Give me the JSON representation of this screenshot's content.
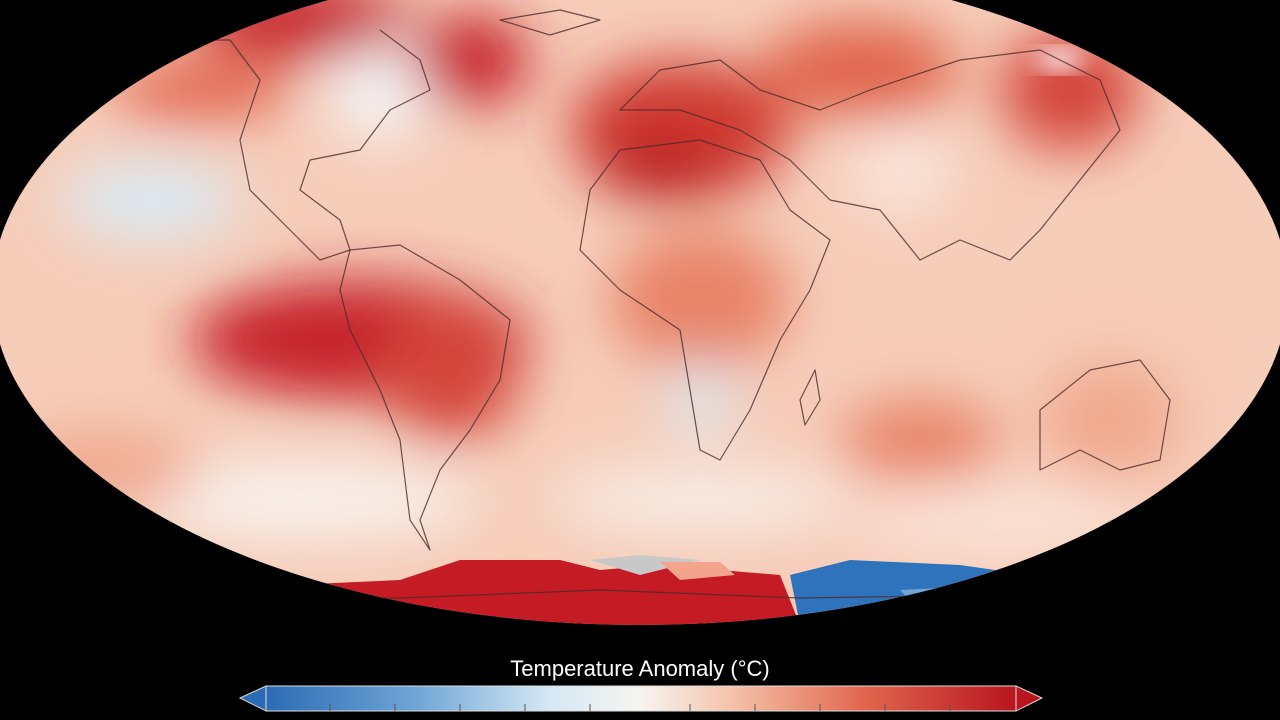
{
  "legend": {
    "title": "Temperature Anomaly (°C)"
  }
}
